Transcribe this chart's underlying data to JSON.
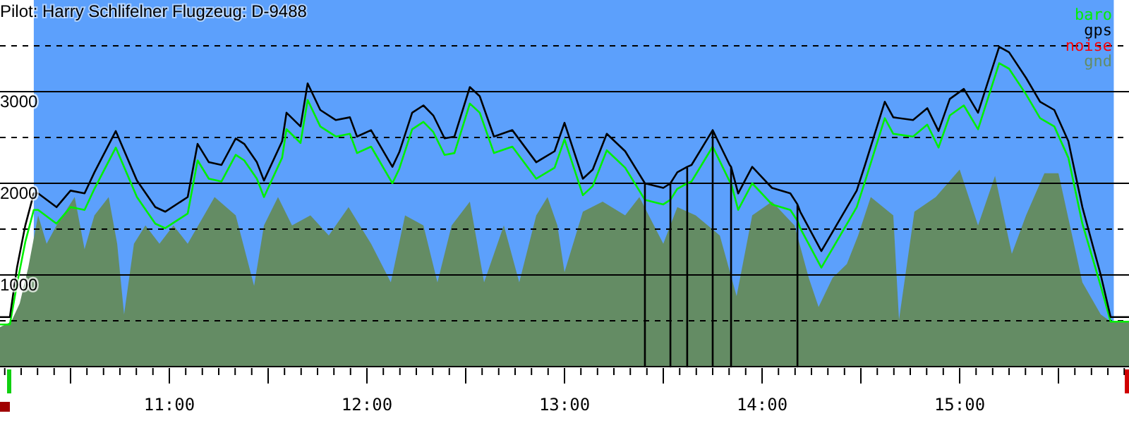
{
  "chart_data": {
    "type": "line",
    "title": "Pilot: Harry Schlifelner Flugzeug: D-9488",
    "xlim": [
      10.143,
      15.857
    ],
    "ylim": [
      0,
      4000
    ],
    "xticks": [
      {
        "value": 10.167,
        "label": null
      },
      {
        "value": 10.25,
        "label": null
      },
      {
        "value": 10.333,
        "label": null
      },
      {
        "value": 10.417,
        "label": null
      },
      {
        "value": 10.5,
        "label": null
      },
      {
        "value": 10.583,
        "label": null
      },
      {
        "value": 10.667,
        "label": null
      },
      {
        "value": 10.75,
        "label": null
      },
      {
        "value": 10.833,
        "label": null
      },
      {
        "value": 10.917,
        "label": null
      },
      {
        "value": 11,
        "label": "11:00"
      },
      {
        "value": 11.083,
        "label": null
      },
      {
        "value": 11.167,
        "label": null
      },
      {
        "value": 11.25,
        "label": null
      },
      {
        "value": 11.333,
        "label": null
      },
      {
        "value": 11.417,
        "label": null
      },
      {
        "value": 11.5,
        "label": null
      },
      {
        "value": 11.583,
        "label": null
      },
      {
        "value": 11.667,
        "label": null
      },
      {
        "value": 11.75,
        "label": null
      },
      {
        "value": 11.833,
        "label": null
      },
      {
        "value": 11.917,
        "label": null
      },
      {
        "value": 12,
        "label": "12:00"
      },
      {
        "value": 12.083,
        "label": null
      },
      {
        "value": 12.167,
        "label": null
      },
      {
        "value": 12.25,
        "label": null
      },
      {
        "value": 12.333,
        "label": null
      },
      {
        "value": 12.417,
        "label": null
      },
      {
        "value": 12.5,
        "label": null
      },
      {
        "value": 12.583,
        "label": null
      },
      {
        "value": 12.667,
        "label": null
      },
      {
        "value": 12.75,
        "label": null
      },
      {
        "value": 12.833,
        "label": null
      },
      {
        "value": 12.917,
        "label": null
      },
      {
        "value": 13,
        "label": "13:00"
      },
      {
        "value": 13.083,
        "label": null
      },
      {
        "value": 13.167,
        "label": null
      },
      {
        "value": 13.25,
        "label": null
      },
      {
        "value": 13.333,
        "label": null
      },
      {
        "value": 13.417,
        "label": null
      },
      {
        "value": 13.5,
        "label": null
      },
      {
        "value": 13.583,
        "label": null
      },
      {
        "value": 13.667,
        "label": null
      },
      {
        "value": 13.75,
        "label": null
      },
      {
        "value": 13.833,
        "label": null
      },
      {
        "value": 13.917,
        "label": null
      },
      {
        "value": 14,
        "label": "14:00"
      },
      {
        "value": 14.083,
        "label": null
      },
      {
        "value": 14.167,
        "label": null
      },
      {
        "value": 14.25,
        "label": null
      },
      {
        "value": 14.333,
        "label": null
      },
      {
        "value": 14.417,
        "label": null
      },
      {
        "value": 14.5,
        "label": null
      },
      {
        "value": 14.583,
        "label": null
      },
      {
        "value": 14.667,
        "label": null
      },
      {
        "value": 14.75,
        "label": null
      },
      {
        "value": 14.833,
        "label": null
      },
      {
        "value": 14.917,
        "label": null
      },
      {
        "value": 15,
        "label": "15:00"
      },
      {
        "value": 15.083,
        "label": null
      },
      {
        "value": 15.167,
        "label": null
      },
      {
        "value": 15.25,
        "label": null
      },
      {
        "value": 15.333,
        "label": null
      },
      {
        "value": 15.417,
        "label": null
      },
      {
        "value": 15.5,
        "label": null
      },
      {
        "value": 15.583,
        "label": null
      },
      {
        "value": 15.667,
        "label": null
      },
      {
        "value": 15.75,
        "label": null
      },
      {
        "value": 15.833,
        "label": null
      }
    ],
    "yticks": [
      {
        "value": 500,
        "label": null
      },
      1000,
      {
        "value": 1500,
        "label": null
      },
      2000,
      {
        "value": 2500,
        "label": null
      },
      3000,
      {
        "value": 3500,
        "label": null
      }
    ],
    "grid": "y",
    "legend": "top right",
    "bands": [
      {
        "axis": "x",
        "from": 10.314,
        "to": 15.78,
        "color": "#5ca0fc"
      }
    ],
    "series": [
      {
        "name": "gnd",
        "type": "area",
        "color": "#648c64",
        "x": [
          10.143,
          10.2,
          10.243,
          10.286,
          10.336,
          10.379,
          10.429,
          10.521,
          10.571,
          10.621,
          10.693,
          10.736,
          10.771,
          10.821,
          10.879,
          10.95,
          11.021,
          11.093,
          11.229,
          11.336,
          11.429,
          11.479,
          11.55,
          11.621,
          11.714,
          11.807,
          11.907,
          12.021,
          12.121,
          12.193,
          12.286,
          12.357,
          12.429,
          12.521,
          12.593,
          12.693,
          12.771,
          12.857,
          12.914,
          12.964,
          13.0,
          13.093,
          13.193,
          13.307,
          13.379,
          13.5,
          13.571,
          13.664,
          13.786,
          13.871,
          13.95,
          14.05,
          14.164,
          14.236,
          14.286,
          14.357,
          14.429,
          14.486,
          14.55,
          14.664,
          14.693,
          14.771,
          14.879,
          15.0,
          15.093,
          15.179,
          15.264,
          15.336,
          15.429,
          15.5,
          15.621,
          15.714,
          15.764,
          15.857
        ],
        "values": [
          430,
          490,
          690,
          1080,
          1650,
          1340,
          1540,
          1850,
          1280,
          1650,
          1850,
          1340,
          570,
          1340,
          1540,
          1340,
          1540,
          1340,
          1850,
          1650,
          880,
          1540,
          1850,
          1540,
          1650,
          1430,
          1740,
          1340,
          920,
          1650,
          1540,
          920,
          1540,
          1800,
          920,
          1540,
          920,
          1650,
          1850,
          1540,
          1030,
          1690,
          1800,
          1650,
          1850,
          1340,
          1740,
          1650,
          1430,
          770,
          1650,
          1800,
          1540,
          970,
          650,
          970,
          1120,
          1430,
          1850,
          1650,
          510,
          1690,
          1850,
          2150,
          1540,
          2080,
          1230,
          1650,
          2110,
          2110,
          920,
          570,
          490,
          490
        ]
      },
      {
        "name": "baro",
        "color": "#00f000",
        "x": [
          10.143,
          10.193,
          10.229,
          10.271,
          10.314,
          10.336,
          10.429,
          10.5,
          10.571,
          10.621,
          10.729,
          10.836,
          10.929,
          10.979,
          11.093,
          11.143,
          11.2,
          11.264,
          11.336,
          11.379,
          11.443,
          11.479,
          11.571,
          11.593,
          11.664,
          11.7,
          11.764,
          11.843,
          11.914,
          11.95,
          12.021,
          12.129,
          12.164,
          12.229,
          12.286,
          12.336,
          12.393,
          12.443,
          12.521,
          12.571,
          12.643,
          12.736,
          12.857,
          12.95,
          13.0,
          13.093,
          13.143,
          13.214,
          13.307,
          13.407,
          13.5,
          13.536,
          13.571,
          13.621,
          13.643,
          13.75,
          13.836,
          13.843,
          13.879,
          13.95,
          14.05,
          14.143,
          14.179,
          14.193,
          14.3,
          14.479,
          14.521,
          14.621,
          14.664,
          14.764,
          14.836,
          14.893,
          14.95,
          15.021,
          15.093,
          15.2,
          15.25,
          15.336,
          15.407,
          15.479,
          15.55,
          15.621,
          15.714,
          15.764,
          15.857
        ],
        "values": [
          460,
          460,
          900,
          1360,
          1710,
          1710,
          1560,
          1740,
          1710,
          1940,
          2390,
          1850,
          1560,
          1510,
          1670,
          2250,
          2050,
          2020,
          2310,
          2250,
          2050,
          1850,
          2280,
          2590,
          2440,
          2910,
          2620,
          2510,
          2540,
          2330,
          2400,
          2000,
          2160,
          2590,
          2670,
          2560,
          2310,
          2330,
          2870,
          2770,
          2330,
          2400,
          2050,
          2170,
          2480,
          1870,
          1970,
          2360,
          2170,
          1820,
          1770,
          1820,
          1940,
          2000,
          2020,
          2400,
          2020,
          2000,
          1710,
          2000,
          1770,
          1710,
          1590,
          1510,
          1080,
          1740,
          2020,
          2710,
          2540,
          2510,
          2640,
          2390,
          2740,
          2850,
          2590,
          3310,
          3250,
          2970,
          2710,
          2620,
          2280,
          1560,
          880,
          490,
          490
        ]
      },
      {
        "name": "gps",
        "color": "#000000",
        "x": [
          10.143,
          10.193,
          10.229,
          10.271,
          10.314,
          10.336,
          10.429,
          10.5,
          10.571,
          10.621,
          10.729,
          10.836,
          10.929,
          10.979,
          11.093,
          11.143,
          11.2,
          11.264,
          11.336,
          11.379,
          11.443,
          11.479,
          11.571,
          11.593,
          11.664,
          11.7,
          11.764,
          11.843,
          11.914,
          11.95,
          12.021,
          12.129,
          12.164,
          12.229,
          12.286,
          12.336,
          12.393,
          12.443,
          12.521,
          12.571,
          12.643,
          12.736,
          12.857,
          12.95,
          13.0,
          13.093,
          13.143,
          13.214,
          13.307,
          13.407,
          13.407,
          13.407,
          13.5,
          13.536,
          13.536,
          13.536,
          13.571,
          13.621,
          13.621,
          13.621,
          13.643,
          13.75,
          13.75,
          13.75,
          13.836,
          13.843,
          13.843,
          13.843,
          13.879,
          13.95,
          14.05,
          14.143,
          14.179,
          14.179,
          14.179,
          14.193,
          14.3,
          14.479,
          14.521,
          14.621,
          14.664,
          14.764,
          14.836,
          14.893,
          14.95,
          15.021,
          15.093,
          15.2,
          15.25,
          15.336,
          15.407,
          15.479,
          15.55,
          15.621,
          15.714,
          15.764,
          15.857
        ],
        "values": [
          540,
          540,
          1080,
          1540,
          1890,
          1890,
          1740,
          1920,
          1890,
          2120,
          2570,
          2030,
          1740,
          1690,
          1850,
          2430,
          2230,
          2200,
          2490,
          2430,
          2230,
          2030,
          2460,
          2770,
          2620,
          3090,
          2800,
          2690,
          2720,
          2510,
          2580,
          2180,
          2340,
          2770,
          2850,
          2740,
          2490,
          2510,
          3050,
          2950,
          2510,
          2580,
          2230,
          2350,
          2660,
          2050,
          2150,
          2540,
          2350,
          2000,
          0,
          2000,
          1950,
          2000,
          0,
          2000,
          2120,
          2180,
          0,
          2180,
          2200,
          2580,
          0,
          2580,
          2200,
          2180,
          0,
          2180,
          1890,
          2180,
          1950,
          1890,
          1770,
          0,
          1770,
          1690,
          1260,
          1920,
          2200,
          2890,
          2720,
          2690,
          2820,
          2570,
          2920,
          3030,
          2770,
          3490,
          3430,
          3150,
          2890,
          2800,
          2460,
          1740,
          1000,
          540,
          540
        ]
      },
      {
        "name": "noise",
        "color": "#ff0000"
      }
    ]
  }
}
